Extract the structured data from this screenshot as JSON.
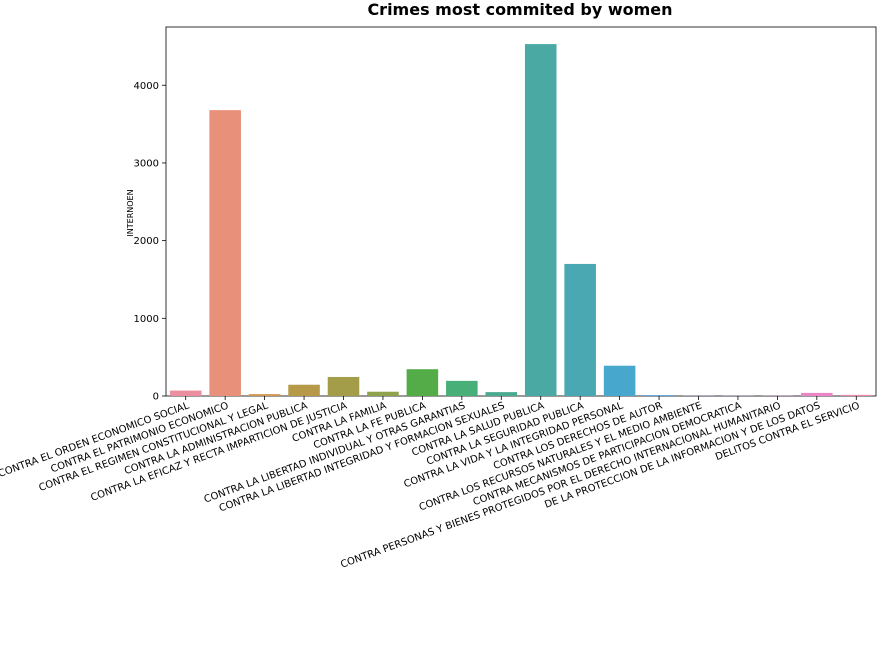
{
  "chart_data": {
    "type": "bar",
    "title": "Crimes most commited by women",
    "xlabel": "",
    "ylabel": "INTERNOEN",
    "ylim": [
      0,
      4750
    ],
    "yticks": [
      0,
      1000,
      2000,
      3000,
      4000
    ],
    "grid": false,
    "categories": [
      "CONTRA EL ORDEN ECONOMICO SOCIAL",
      "CONTRA EL PATRIMONIO ECONOMICO",
      "CONTRA EL REGIMEN CONSTITUCIONAL Y LEGAL",
      "CONTRA LA ADMINISTRACION PUBLICA",
      "CONTRA LA EFICAZ Y RECTA IMPARTICION DE JUSTICIA",
      "CONTRA LA FAMILIA",
      "CONTRA LA FE PUBLICA",
      "CONTRA LA LIBERTAD INDIVIDUAL Y OTRAS GARANTIAS",
      "CONTRA LA LIBERTAD INTEGRIDAD Y FORMACION SEXUALES",
      "CONTRA LA SALUD PUBLICA",
      "CONTRA LA SEGURIDAD PUBLICA",
      "CONTRA LA VIDA Y LA INTEGRIDAD PERSONAL",
      "CONTRA LOS DERECHOS DE AUTOR",
      "CONTRA LOS RECURSOS NATURALES Y EL MEDIO AMBIENTE",
      "CONTRA MECANISMOS DE PARTICIPACION DEMOCRATICA",
      "CONTRA PERSONAS Y BIENES PROTEGIDOS POR EL DERECHO INTERNACIONAL HUMANITARIO",
      "DE LA PROTECCION DE LA INFORMACION Y DE LOS DATOS",
      "DELITOS CONTRA EL SERVICIO"
    ],
    "values": [
      70,
      3680,
      25,
      145,
      245,
      55,
      345,
      195,
      50,
      4530,
      1700,
      390,
      12,
      3,
      3,
      3,
      40,
      15
    ],
    "colors": [
      "#ea8ea0",
      "#e8907a",
      "#d49a55",
      "#b79a49",
      "#a39d49",
      "#8fa24c",
      "#53ac48",
      "#48af78",
      "#4aaa90",
      "#4aa9a2",
      "#4aa8b3",
      "#48a7cd",
      "#5ba3e0",
      "#8a98e8",
      "#b48de8",
      "#d786e0",
      "#ea86c6",
      "#ec8ab1"
    ]
  }
}
